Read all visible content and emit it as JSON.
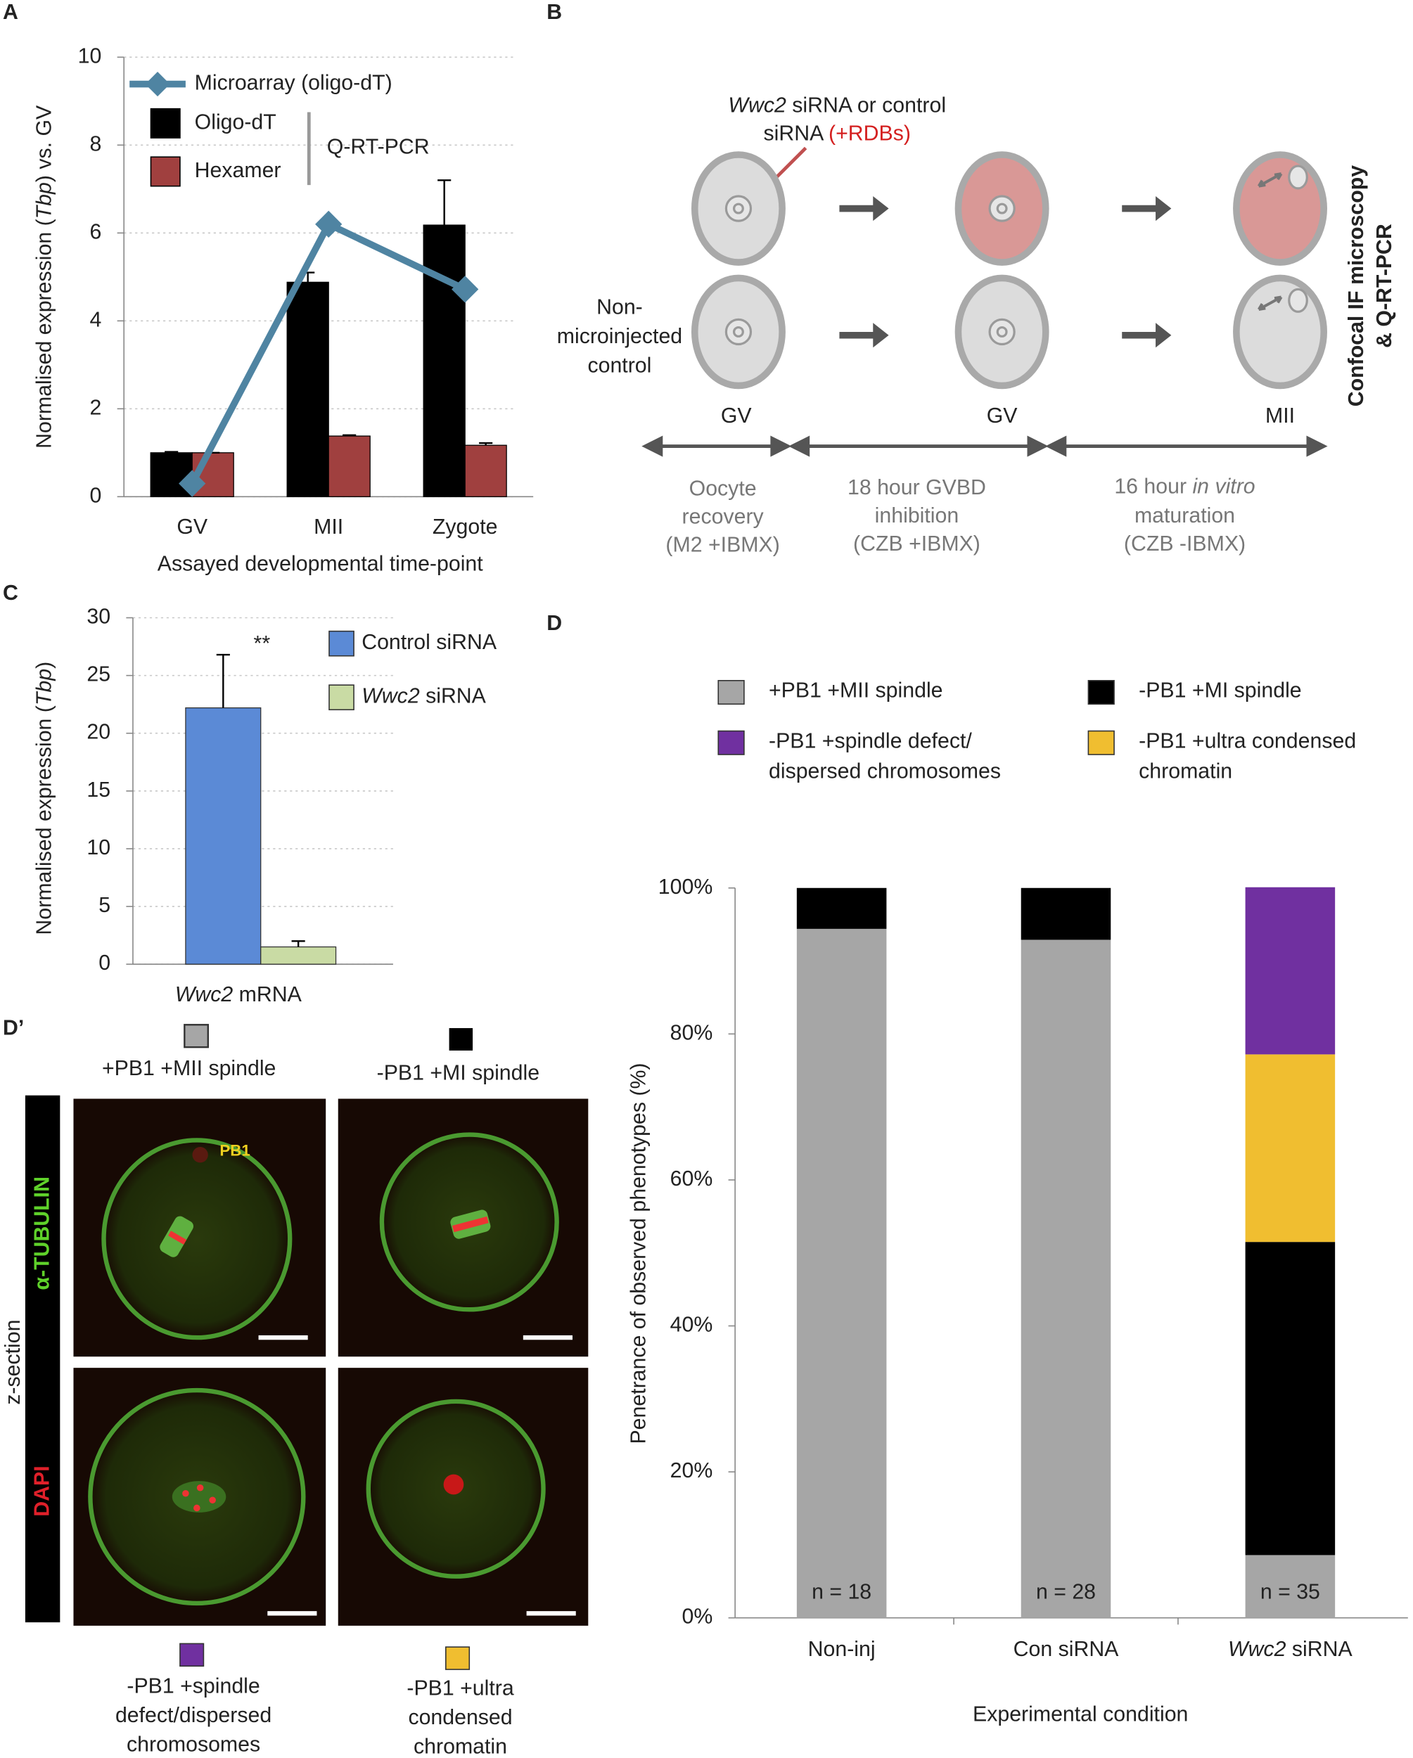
{
  "panel_labels": {
    "a": "A",
    "b": "B",
    "c": "C",
    "d": "D",
    "d_prime": "D’"
  },
  "chart_data": [
    {
      "type": "bar_line",
      "ylabel": [
        "Normalised expression (",
        "Tbp",
        ") vs. GV"
      ],
      "xlabel": "Assayed developmental time-point",
      "categories": [
        "GV",
        "MII",
        "Zygote"
      ],
      "series": [
        {
          "name": "Microarray (oligo-dT)",
          "type": "line",
          "color": "#4f84a2",
          "values": [
            0.3,
            6.2,
            4.72
          ]
        },
        {
          "name": "Oligo-dT",
          "type": "bar",
          "color": "#000000",
          "values": [
            1.0,
            4.88,
            6.18
          ],
          "errors": [
            0.02,
            0.22,
            1.02
          ]
        },
        {
          "name": "Hexamer",
          "type": "bar",
          "color": "#a0403f",
          "values": [
            1.0,
            1.38,
            1.17
          ],
          "errors": [
            0.0,
            0.02,
            0.05
          ]
        }
      ],
      "legend_group_label": "Q-RT-PCR",
      "ylim": [
        0,
        10
      ],
      "yticks": [
        0,
        2,
        4,
        6,
        8,
        10
      ],
      "grid": true
    },
    {
      "type": "bar",
      "ylabel": [
        "Normalised expression (",
        "Tbp",
        ")"
      ],
      "categories": [
        "Wwc2 mRNA"
      ],
      "series": [
        {
          "name": "Control siRNA",
          "color": "#5b8ad6",
          "values": [
            22.2
          ],
          "errors": [
            4.6
          ]
        },
        {
          "name": "Wwc2 siRNA",
          "color": "#c9dba4",
          "values": [
            1.5
          ],
          "errors": [
            0.5
          ]
        }
      ],
      "annotations": [
        "**"
      ],
      "ylim": [
        0,
        30
      ],
      "yticks": [
        0,
        5,
        10,
        15,
        20,
        25,
        30
      ],
      "grid": true
    },
    {
      "type": "stacked_bar",
      "ylabel": "Penetrance of observed phenotypes (%)",
      "xlabel": "Experimental condition",
      "categories": [
        "Non-inj",
        "Con siRNA",
        "Wwc2 siRNA"
      ],
      "series": [
        {
          "name": "+PB1 +MII spindle",
          "color": "#a6a6a6",
          "values": [
            94.4,
            92.9,
            8.6
          ]
        },
        {
          "name": "-PB1 +MI spindle",
          "color": "#000000",
          "values": [
            5.6,
            7.1,
            42.9
          ]
        },
        {
          "name": "-PB1 +ultra condensed chromatin",
          "color": "#f0be30",
          "values": [
            0,
            0,
            25.7
          ]
        },
        {
          "name": "-PB1 +spindle defect/ dispersed chromosomes",
          "color": "#7030a0",
          "values": [
            0,
            0,
            22.9
          ]
        }
      ],
      "annotations": [
        "n = 18",
        "n = 28",
        "n = 35"
      ],
      "ylim": [
        0,
        100
      ],
      "yticks": [
        {
          "value": 0,
          "label": "0%"
        },
        {
          "value": 20,
          "label": "20%"
        },
        {
          "value": 40,
          "label": "40%"
        },
        {
          "value": 60,
          "label": "60%"
        },
        {
          "value": 80,
          "label": "80%"
        },
        {
          "value": 100,
          "label": "100%"
        }
      ],
      "grid": false
    }
  ],
  "diagram": {
    "injection_label": [
      "Wwc2",
      " siRNA or control",
      "siRNA ",
      "(+RDBs)"
    ],
    "control_label": [
      "Non-",
      "microinjected",
      "control"
    ],
    "stage_labels": [
      "GV",
      "GV",
      "MII"
    ],
    "readout": [
      "Confocal IF microscopy",
      "& Q-RT-PCR"
    ],
    "steps": [
      [
        "Oocyte",
        "recovery",
        "(M2 +IBMX)"
      ],
      [
        "18 hour GVBD",
        "inhibition",
        "(CZB +IBMX)"
      ],
      [
        [
          "16 hour ",
          "in vitro"
        ],
        "maturation",
        "(CZB -IBMX)"
      ]
    ]
  },
  "micrographs": {
    "top_labels": [
      "+PB1 +MII spindle",
      "-PB1 +MI spindle"
    ],
    "bottom_labels": [
      [
        "-PB1 +spindle",
        "defect/dispersed",
        "chromosomes"
      ],
      [
        "-PB1 +ultra",
        "condensed",
        "chromatin"
      ]
    ],
    "stain_labels": [
      "α-TUBULIN",
      "DAPI"
    ],
    "section_label": "z-section",
    "pb_label": "PB1"
  }
}
